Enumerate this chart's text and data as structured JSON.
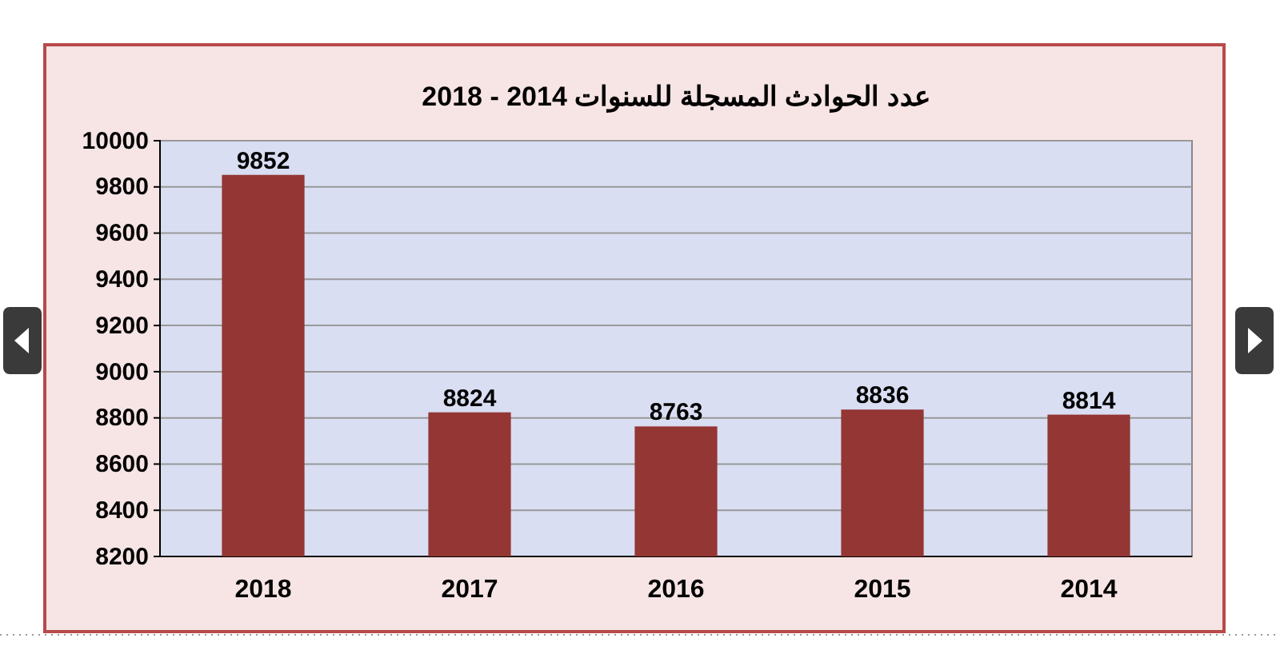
{
  "chart_data": {
    "type": "bar",
    "title": "عدد الحوادث المسجلة للسنوات 2014 - 2018",
    "categories": [
      "2018",
      "2017",
      "2016",
      "2015",
      "2014"
    ],
    "values": [
      9852,
      8824,
      8763,
      8836,
      8814
    ],
    "color": "#943634",
    "ylim": [
      8200,
      10000
    ],
    "yticks": [
      8200,
      8400,
      8600,
      8800,
      9000,
      9200,
      9400,
      9600,
      9800,
      10000
    ],
    "grid": "y",
    "data_labels": true
  }
}
